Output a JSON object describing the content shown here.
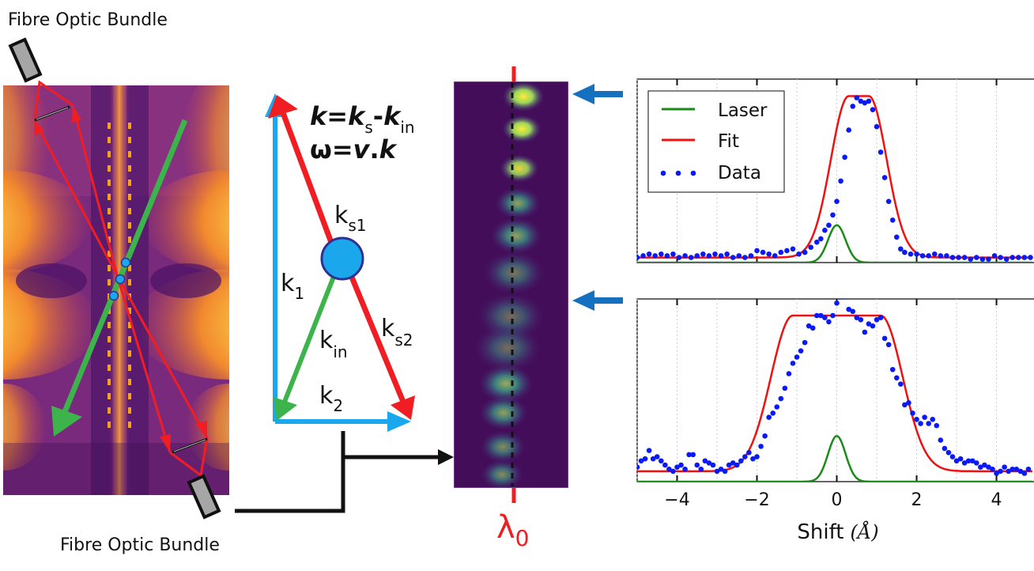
{
  "labels": {
    "fibre_top": "Fibre Optic Bundle",
    "fibre_bottom": "Fibre Optic Bundle",
    "eq1_k": "k",
    "eq1_eq": "=",
    "eq1_ks": "k",
    "eq1_s": "s",
    "eq1_minus": "-",
    "eq1_kin": "k",
    "eq1_in": "in",
    "eq2_omega": "ω=",
    "eq2_v": "v",
    "eq2_dot": ".",
    "eq2_k": "k",
    "k_s1": "k",
    "k_s1_sub": "s1",
    "k_1": "k",
    "k_1_sub": "1",
    "k_in": "k",
    "k_in_sub": "in",
    "k_s2": "k",
    "k_s2_sub": "s2",
    "k_2": "k",
    "k_2_sub": "2",
    "lambda": "λ",
    "lambda_sub": "0"
  },
  "colors": {
    "red": "#f01e23",
    "green": "#3cb44b",
    "cyan": "#1aa7ec",
    "blue_arrow": "#1570c0",
    "orange_dash": "#f7a21b",
    "scatter_circle": "#1aa7ec",
    "scatter_circle_edge": "#2e3192",
    "data_points": "#0a1af5",
    "fit": "#f01010",
    "laser": "#1a8a1a"
  },
  "chart_data": [
    {
      "type": "line",
      "title": "",
      "xlabel": "",
      "ylabel": "",
      "xlim": [
        -5,
        4.9
      ],
      "ylim": [
        0,
        1.08
      ],
      "xticks": [
        -4,
        -2,
        0,
        2,
        4
      ],
      "xtick_labels": [],
      "grid": "vertical dotted",
      "legend": {
        "placement": "top-left",
        "entries": [
          "Laser",
          "Fit",
          "Data"
        ]
      },
      "series": [
        {
          "name": "Laser",
          "kind": "line",
          "model": {
            "type": "gaussian",
            "amp": 0.22,
            "center": 0,
            "sigma": 0.22,
            "offset": 0
          }
        },
        {
          "name": "Fit",
          "kind": "line",
          "model": {
            "type": "flat-gaussian",
            "amp": 0.95,
            "center": 0.55,
            "half_width": 0.25,
            "sigma": 0.45,
            "offset": 0.03
          }
        },
        {
          "name": "Data",
          "kind": "scatter",
          "x": [
            -5.0,
            -4.85,
            -4.7,
            -4.55,
            -4.4,
            -4.25,
            -4.1,
            -3.95,
            -3.8,
            -3.65,
            -3.5,
            -3.35,
            -3.2,
            -3.05,
            -2.9,
            -2.75,
            -2.6,
            -2.45,
            -2.3,
            -2.15,
            -2.0,
            -1.85,
            -1.7,
            -1.55,
            -1.4,
            -1.25,
            -1.1,
            -0.95,
            -0.8,
            -0.65,
            -0.5,
            -0.4,
            -0.3,
            -0.2,
            -0.1,
            0.0,
            0.1,
            0.2,
            0.3,
            0.4,
            0.5,
            0.6,
            0.7,
            0.8,
            0.9,
            1.0,
            1.1,
            1.2,
            1.3,
            1.4,
            1.5,
            1.6,
            1.7,
            1.85,
            2.0,
            2.15,
            2.3,
            2.45,
            2.6,
            2.75,
            2.9,
            3.05,
            3.2,
            3.35,
            3.5,
            3.65,
            3.8,
            3.95,
            4.1,
            4.25,
            4.4,
            4.55,
            4.7,
            4.85
          ],
          "y": [
            0.03,
            0.04,
            0.05,
            0.04,
            0.05,
            0.04,
            0.05,
            0.03,
            0.04,
            0.03,
            0.04,
            0.05,
            0.04,
            0.05,
            0.04,
            0.05,
            0.03,
            0.04,
            0.03,
            0.04,
            0.07,
            0.06,
            0.05,
            0.04,
            0.06,
            0.07,
            0.08,
            0.05,
            0.06,
            0.09,
            0.12,
            0.14,
            0.19,
            0.22,
            0.28,
            0.36,
            0.48,
            0.62,
            0.78,
            0.92,
            0.97,
            0.95,
            0.94,
            0.95,
            0.9,
            0.8,
            0.65,
            0.5,
            0.36,
            0.25,
            0.15,
            0.08,
            0.06,
            0.05,
            0.05,
            0.04,
            0.04,
            0.05,
            0.04,
            0.04,
            0.03,
            0.03,
            0.03,
            0.02,
            0.03,
            0.02,
            0.02,
            0.04,
            0.03,
            0.02,
            0.03,
            0.03,
            0.03,
            0.03
          ]
        }
      ]
    },
    {
      "type": "line",
      "title": "",
      "xlabel": "Shift (Å)",
      "xlabel_text": "Shift",
      "xlabel_unit": "(Å)",
      "ylabel": "",
      "xlim": [
        -5,
        4.9
      ],
      "ylim": [
        0,
        0.88
      ],
      "xticks": [
        -4,
        -2,
        0,
        2,
        4
      ],
      "xtick_labels": [
        "−4",
        "−2",
        "0",
        "2",
        "4"
      ],
      "grid": "vertical dotted",
      "series": [
        {
          "name": "Laser",
          "kind": "line",
          "model": {
            "type": "gaussian",
            "amp": 0.22,
            "center": 0,
            "sigma": 0.22,
            "offset": 0
          }
        },
        {
          "name": "Fit",
          "kind": "line",
          "model": {
            "type": "flat-gaussian",
            "amp": 0.75,
            "center": 0.0,
            "half_width": 1.1,
            "sigma": 0.55,
            "offset": 0.05
          }
        },
        {
          "name": "Data",
          "kind": "scatter",
          "x": [
            -5.0,
            -4.9,
            -4.8,
            -4.7,
            -4.6,
            -4.5,
            -4.4,
            -4.3,
            -4.2,
            -4.1,
            -4.0,
            -3.9,
            -3.8,
            -3.7,
            -3.6,
            -3.5,
            -3.4,
            -3.3,
            -3.2,
            -3.1,
            -3.0,
            -2.9,
            -2.8,
            -2.7,
            -2.6,
            -2.5,
            -2.4,
            -2.3,
            -2.2,
            -2.1,
            -2.0,
            -1.9,
            -1.8,
            -1.7,
            -1.6,
            -1.5,
            -1.4,
            -1.3,
            -1.2,
            -1.1,
            -1.0,
            -0.9,
            -0.8,
            -0.7,
            -0.6,
            -0.5,
            -0.4,
            -0.3,
            -0.2,
            -0.1,
            0.0,
            0.1,
            0.2,
            0.3,
            0.4,
            0.5,
            0.6,
            0.7,
            0.8,
            0.9,
            1.0,
            1.1,
            1.2,
            1.3,
            1.4,
            1.5,
            1.6,
            1.7,
            1.8,
            1.9,
            2.0,
            2.1,
            2.2,
            2.3,
            2.4,
            2.5,
            2.6,
            2.7,
            2.8,
            2.9,
            3.0,
            3.1,
            3.2,
            3.3,
            3.4,
            3.5,
            3.6,
            3.7,
            3.8,
            3.9,
            4.0,
            4.1,
            4.2,
            4.3,
            4.4,
            4.5,
            4.6,
            4.7,
            4.8
          ],
          "y": [
            0.07,
            0.1,
            0.11,
            0.15,
            0.11,
            0.12,
            0.1,
            0.08,
            0.06,
            0.05,
            0.07,
            0.08,
            0.06,
            0.13,
            0.13,
            0.08,
            0.06,
            0.1,
            0.09,
            0.08,
            0.05,
            0.06,
            0.05,
            0.08,
            0.09,
            0.08,
            0.1,
            0.12,
            0.14,
            0.11,
            0.12,
            0.17,
            0.22,
            0.31,
            0.33,
            0.36,
            0.4,
            0.45,
            0.52,
            0.57,
            0.6,
            0.63,
            0.67,
            0.75,
            0.74,
            0.8,
            0.8,
            0.79,
            0.77,
            0.8,
            0.86,
            0.89,
            0.89,
            0.83,
            0.82,
            0.79,
            0.78,
            0.72,
            0.76,
            0.75,
            0.78,
            0.79,
            0.69,
            0.66,
            0.54,
            0.5,
            0.47,
            0.37,
            0.38,
            0.33,
            0.3,
            0.28,
            0.31,
            0.28,
            0.3,
            0.27,
            0.2,
            0.16,
            0.14,
            0.12,
            0.1,
            0.11,
            0.09,
            0.1,
            0.1,
            0.09,
            0.07,
            0.08,
            0.07,
            0.06,
            0.04,
            0.05,
            0.07,
            0.05,
            0.06,
            0.06,
            0.05,
            0.04,
            0.06
          ]
        }
      ]
    }
  ]
}
